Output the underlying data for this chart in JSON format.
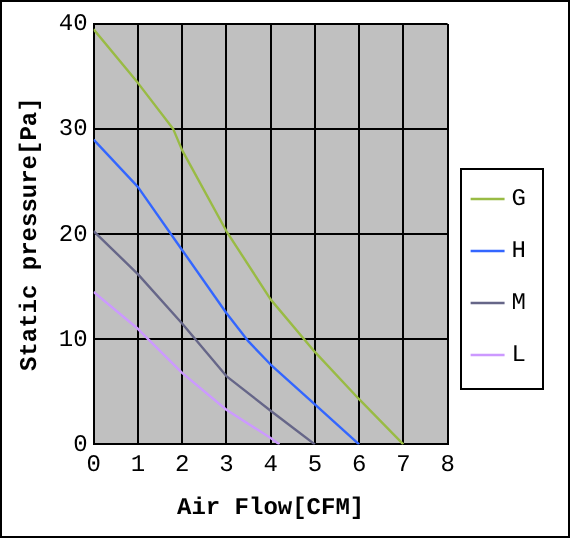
{
  "chart_data": {
    "type": "line",
    "xlabel": "Air Flow[CFM]",
    "ylabel": "Static pressure[Pa]",
    "xlim": [
      0,
      8
    ],
    "xticks": [
      0,
      1,
      2,
      3,
      4,
      5,
      6,
      7,
      8
    ],
    "ylim": [
      0,
      40
    ],
    "yticks": [
      0,
      10,
      20,
      30,
      40
    ],
    "grid": true,
    "legend": "right",
    "marker": "none",
    "line_style": "solid",
    "series": [
      {
        "name": "G",
        "color": "#99bb44",
        "x": [
          0,
          1,
          1.8,
          2,
          3,
          4,
          5,
          6,
          7
        ],
        "values": [
          39.5,
          34.4,
          30,
          28,
          20.3,
          13.8,
          8.8,
          4.3,
          0
        ]
      },
      {
        "name": "H",
        "color": "#3366ff",
        "x": [
          0,
          1,
          2,
          3,
          3.5,
          4,
          5,
          6
        ],
        "values": [
          29,
          24.5,
          18.5,
          12.5,
          9.8,
          7.6,
          3.8,
          0
        ]
      },
      {
        "name": "M",
        "color": "#666688",
        "x": [
          0,
          1,
          2,
          3,
          4,
          5
        ],
        "values": [
          20.3,
          16.2,
          11.5,
          6.5,
          3.2,
          0
        ]
      },
      {
        "name": "L",
        "color": "#cc99ff",
        "x": [
          0,
          1,
          2,
          3,
          4,
          4.2
        ],
        "values": [
          14.5,
          11,
          6.8,
          3.3,
          0.6,
          0
        ]
      }
    ]
  }
}
